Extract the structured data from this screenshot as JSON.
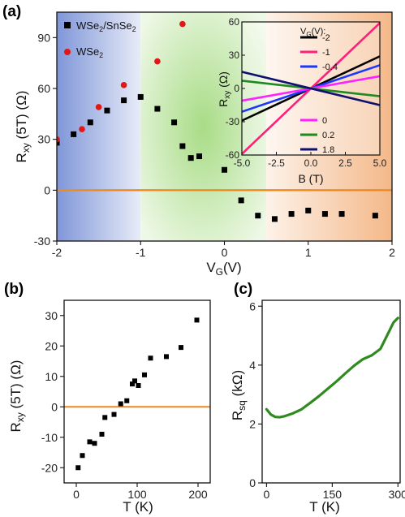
{
  "chart_data": [
    {
      "panel": "(a)",
      "type": "scatter",
      "xlabel": "V_G(V)",
      "ylabel": "R_xy (5T) (Ω)",
      "xlim": [
        -2,
        2
      ],
      "ylim": [
        -30,
        105
      ],
      "xticks": [
        "-2",
        "-1",
        "0",
        "1",
        "2"
      ],
      "yticks": [
        "-30",
        "0",
        "30",
        "60",
        "90"
      ],
      "background_bands": [
        {
          "from": -2,
          "to": -1,
          "color": "#8fa3dc"
        },
        {
          "from": -1,
          "to": 0.5,
          "color": "#c6e8b0"
        },
        {
          "from": 0.5,
          "to": 2,
          "color": "#f6c39a"
        }
      ],
      "reference_line": {
        "y": 0,
        "color": "#f08a1e"
      },
      "series": [
        {
          "name": "WSe2/SnSe2",
          "marker": "square",
          "color": "#000000",
          "x": [
            -2.0,
            -1.8,
            -1.6,
            -1.4,
            -1.2,
            -1.0,
            -0.8,
            -0.6,
            -0.5,
            -0.4,
            -0.3,
            0.0,
            0.2,
            0.4,
            0.6,
            0.8,
            1.0,
            1.2,
            1.4,
            1.8
          ],
          "y": [
            28,
            33,
            40,
            47,
            53,
            55,
            48,
            40,
            26,
            19,
            20,
            12,
            -6,
            -15,
            -17,
            -14,
            -12,
            -14,
            -14,
            -15
          ]
        },
        {
          "name": "WSe2",
          "marker": "circle",
          "color": "#e01818",
          "x": [
            -2.0,
            -1.7,
            -1.5,
            -1.2,
            -0.8,
            -0.5
          ],
          "y": [
            30,
            36,
            49,
            62,
            76,
            98
          ]
        }
      ],
      "inset": {
        "type": "line",
        "xlabel": "B (T)",
        "ylabel": "R_xy (Ω)",
        "xlim": [
          -5,
          5
        ],
        "ylim": [
          -60,
          60
        ],
        "xticks": [
          "-5.0",
          "-2.5",
          "0.0",
          "2.5",
          "5.0"
        ],
        "yticks": [
          "-60",
          "-30",
          "0",
          "30",
          "60"
        ],
        "legend_title": "V_G(V):",
        "series": [
          {
            "name": "-2",
            "color": "#000000",
            "slope": 5.8
          },
          {
            "name": "-1",
            "color": "#ff1f7a",
            "slope": 11.8
          },
          {
            "name": "-0.4",
            "color": "#1a36ff",
            "slope": 4.2
          },
          {
            "name": "0",
            "color": "#ff22ff",
            "slope": 2.2
          },
          {
            "name": "0.2",
            "color": "#1f8a1f",
            "slope": -1.4
          },
          {
            "name": "1.8",
            "color": "#10106e",
            "slope": -3.0
          }
        ]
      }
    },
    {
      "panel": "(b)",
      "type": "scatter",
      "xlabel": "T (K)",
      "ylabel": "R_xy (5T) (Ω)",
      "xlim": [
        -20,
        220
      ],
      "ylim": [
        -25,
        35
      ],
      "xticks": [
        "0",
        "100",
        "200"
      ],
      "yticks": [
        "-20",
        "-10",
        "0",
        "10",
        "20",
        "30"
      ],
      "reference_line": {
        "y": 0,
        "color": "#f08a1e"
      },
      "series": [
        {
          "name": "",
          "marker": "square",
          "color": "#000000",
          "x": [
            3,
            10,
            22,
            30,
            42,
            47,
            62,
            73,
            83,
            92,
            96,
            102,
            112,
            122,
            148,
            172,
            198
          ],
          "y": [
            -20,
            -16,
            -11.5,
            -12,
            -9,
            -3.5,
            -2.5,
            1,
            2,
            7.5,
            8.5,
            7,
            10.5,
            16,
            16.5,
            19.5,
            28.5
          ]
        }
      ]
    },
    {
      "panel": "(c)",
      "type": "line",
      "xlabel": "T (K)",
      "ylabel": "R_sq (kΩ)",
      "xlim": [
        -10,
        305
      ],
      "ylim": [
        0,
        6.2
      ],
      "xticks": [
        "0",
        "150",
        "300"
      ],
      "yticks": [
        "0",
        "2",
        "4",
        "6"
      ],
      "series": [
        {
          "name": "",
          "color": "#2f8a1f",
          "x": [
            0,
            10,
            20,
            30,
            40,
            60,
            80,
            100,
            120,
            140,
            160,
            180,
            200,
            220,
            240,
            260,
            270,
            280,
            290,
            300
          ],
          "y": [
            2.5,
            2.32,
            2.24,
            2.23,
            2.26,
            2.36,
            2.5,
            2.72,
            2.95,
            3.2,
            3.45,
            3.72,
            3.98,
            4.2,
            4.33,
            4.55,
            4.85,
            5.15,
            5.45,
            5.6
          ]
        }
      ]
    }
  ]
}
